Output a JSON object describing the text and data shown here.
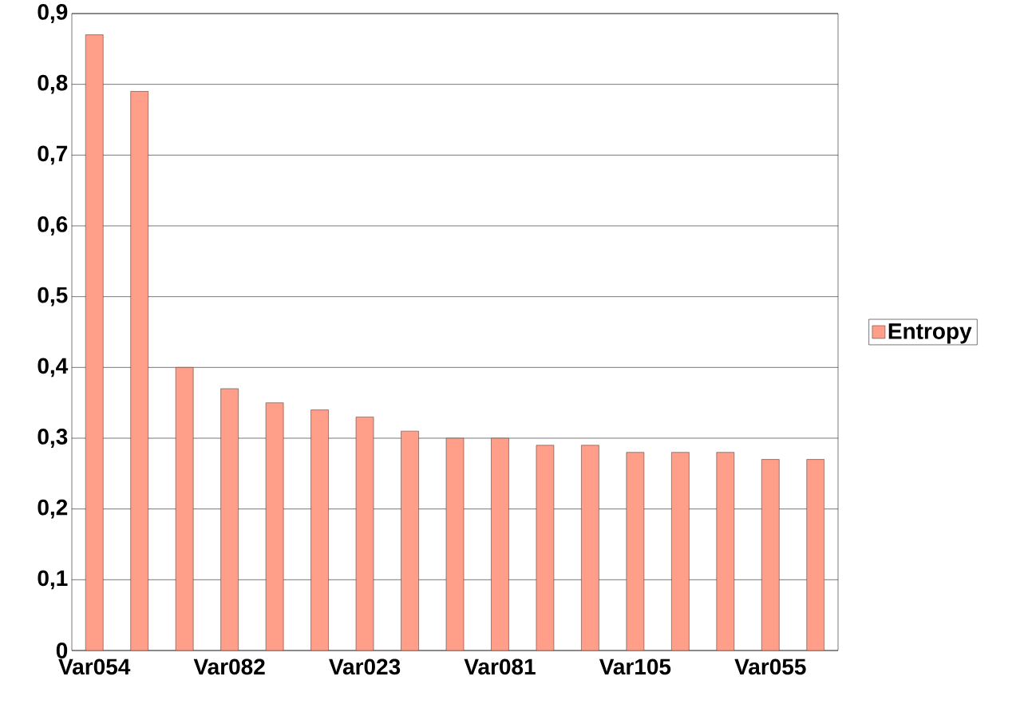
{
  "chart_data": {
    "type": "bar",
    "categories": [
      "Var054",
      null,
      null,
      "Var082",
      null,
      null,
      "Var023",
      null,
      null,
      "Var081",
      null,
      null,
      "Var105",
      null,
      null,
      "Var055",
      null
    ],
    "series": [
      {
        "name": "Entropy",
        "color": "#ff9f8a",
        "values": [
          0.87,
          0.79,
          0.4,
          0.37,
          0.35,
          0.34,
          0.33,
          0.31,
          0.3,
          0.3,
          0.29,
          0.29,
          0.28,
          0.28,
          0.28,
          0.27,
          0.27
        ]
      }
    ],
    "ylim": [
      0,
      0.9
    ],
    "yticks": [
      0,
      {
        "value": 0.1,
        "label": "0,1"
      },
      {
        "value": 0.2,
        "label": "0,2"
      },
      {
        "value": 0.3,
        "label": "0,3"
      },
      {
        "value": 0.4,
        "label": "0,4"
      },
      {
        "value": 0.5,
        "label": "0,5"
      },
      {
        "value": 0.6,
        "label": "0,6"
      },
      {
        "value": 0.7,
        "label": "0,7"
      },
      {
        "value": 0.8,
        "label": "0,8"
      },
      {
        "value": 0.9,
        "label": "0,9"
      }
    ],
    "grid": "y",
    "legend": "right"
  }
}
